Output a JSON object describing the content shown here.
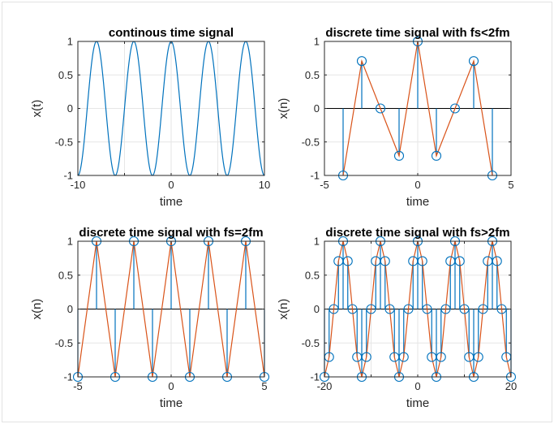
{
  "colors": {
    "series1": "#0072BD",
    "series2": "#D95319",
    "axis": "#262626",
    "grid": "#e6e6e6"
  },
  "chart_data": [
    {
      "type": "line",
      "title": "continous time signal",
      "xlabel": "time",
      "ylabel": "x(t)",
      "xlim": [
        -10,
        10
      ],
      "ylim": [
        -1,
        1
      ],
      "xticks": [
        -10,
        -5,
        0,
        5,
        10
      ],
      "yticks": [
        -1,
        -0.5,
        0,
        0.5,
        1
      ],
      "xticklabels": [
        "-10",
        "",
        "0",
        "",
        "10"
      ],
      "yticklabels": [
        "-1",
        "-0.5",
        "0",
        "0.5",
        "1"
      ],
      "grid": true,
      "series": [
        {
          "kind": "cosine",
          "frequency": 0.25,
          "amplitude": 1,
          "samples": 801
        }
      ]
    },
    {
      "type": "stem",
      "title": "discrete time signal with fs<2fm",
      "xlabel": "time",
      "ylabel": "x(n)",
      "xlim": [
        -5,
        5
      ],
      "ylim": [
        -1,
        1
      ],
      "xticks": [
        -5,
        0,
        5
      ],
      "yticks": [
        -1,
        -0.5,
        0,
        0.5,
        1
      ],
      "xticklabels": [
        "-5",
        "0",
        "5"
      ],
      "yticklabels": [
        "-1",
        "-0.5",
        "0",
        "0.5",
        "1"
      ],
      "grid": true,
      "x": [
        -4,
        -3,
        -2,
        -1,
        0,
        1,
        2,
        3,
        4
      ],
      "y": [
        -1,
        0.707,
        0,
        -0.707,
        1,
        -0.707,
        0,
        0.707,
        -1
      ],
      "connect_line": true
    },
    {
      "type": "stem",
      "title": "discrete time signal with fs=2fm",
      "xlabel": "time",
      "ylabel": "x(n)",
      "xlim": [
        -5,
        5
      ],
      "ylim": [
        -1,
        1
      ],
      "xticks": [
        -5,
        0,
        5
      ],
      "yticks": [
        -1,
        -0.5,
        0,
        0.5,
        1
      ],
      "xticklabels": [
        "-5",
        "0",
        "5"
      ],
      "yticklabels": [
        "-1",
        "-0.5",
        "0",
        "0.5",
        "1"
      ],
      "grid": true,
      "x": [
        -5,
        -4,
        -3,
        -2,
        -1,
        0,
        1,
        2,
        3,
        4,
        5
      ],
      "y": [
        -1,
        1,
        -1,
        1,
        -1,
        1,
        -1,
        1,
        -1,
        1,
        -1
      ],
      "connect_line": true
    },
    {
      "type": "stem",
      "title": "discrete time signal with fs>2fm",
      "xlabel": "time",
      "ylabel": "x(n)",
      "xlim": [
        -20,
        20
      ],
      "ylim": [
        -1,
        1
      ],
      "xticks": [
        -20,
        -10,
        0,
        10,
        20
      ],
      "yticks": [
        -1,
        -0.5,
        0,
        0.5,
        1
      ],
      "xticklabels": [
        "-20",
        "",
        "0",
        "",
        "20"
      ],
      "yticklabels": [
        "-1",
        "-0.5",
        "0",
        "0.5",
        "1"
      ],
      "grid": true,
      "x": [
        -20,
        -19,
        -18,
        -17,
        -16,
        -15,
        -14,
        -13,
        -12,
        -11,
        -10,
        -9,
        -8,
        -7,
        -6,
        -5,
        -4,
        -3,
        -2,
        -1,
        0,
        1,
        2,
        3,
        4,
        5,
        6,
        7,
        8,
        9,
        10,
        11,
        12,
        13,
        14,
        15,
        16,
        17,
        18,
        19,
        20
      ],
      "y": [
        -1,
        -0.707,
        0,
        0.707,
        1,
        0.707,
        0,
        -0.707,
        -1,
        -0.707,
        0,
        0.707,
        1,
        0.707,
        0,
        -0.707,
        -1,
        -0.707,
        0,
        0.707,
        1,
        0.707,
        0,
        -0.707,
        -1,
        -0.707,
        0,
        0.707,
        1,
        0.707,
        0,
        -0.707,
        -1,
        -0.707,
        0,
        0.707,
        1,
        0.707,
        0,
        -0.707,
        -1
      ],
      "connect_line": true
    }
  ]
}
